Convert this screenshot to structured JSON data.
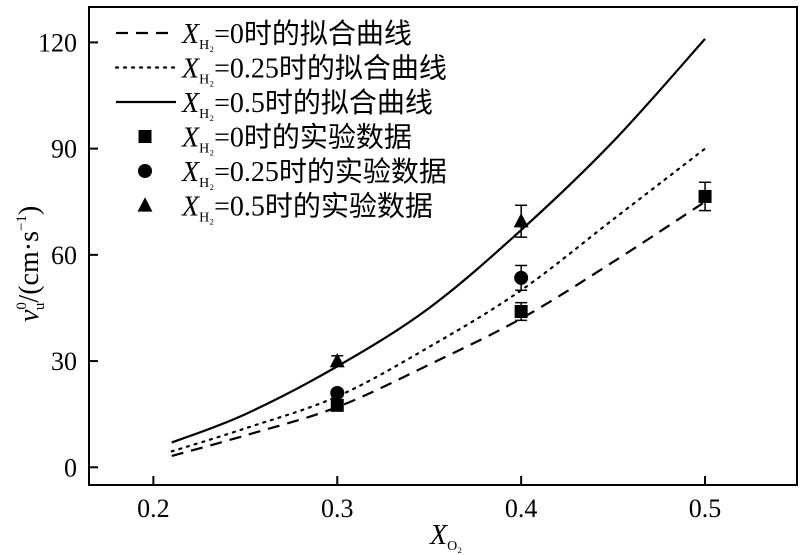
{
  "chart_data": {
    "type": "scatter",
    "title": "",
    "xlabel": "X",
    "xlabel_sub": "O₂",
    "ylabel_parts": {
      "v": "v",
      "sup": "0",
      "sub": "u",
      "unit": "/(cm·s",
      "unit_exp": "−1",
      "close": ")"
    },
    "xlim": [
      0.165,
      0.55
    ],
    "ylim": [
      -5,
      130
    ],
    "xticks": [
      0.2,
      0.3,
      0.4,
      0.5
    ],
    "xtick_labels": [
      "0.2",
      "0.3",
      "0.4",
      "0.5"
    ],
    "yticks": [
      0,
      30,
      60,
      90,
      120
    ],
    "ytick_labels": [
      "0",
      "30",
      "60",
      "90",
      "120"
    ],
    "grid": false,
    "legend_position": "top-left",
    "fit_lines": [
      {
        "name_prefix": "X",
        "name_sub": "H₂",
        "name_suffix": "=0时的拟合曲线",
        "style": "dashed",
        "x": [
          0.21,
          0.25,
          0.3,
          0.35,
          0.4,
          0.45,
          0.5
        ],
        "y": [
          3.2,
          9,
          17,
          29,
          42,
          58,
          75
        ]
      },
      {
        "name_prefix": "X",
        "name_sub": "H₂",
        "name_suffix": "=0.25时的拟合曲线",
        "style": "dotted",
        "x": [
          0.21,
          0.25,
          0.3,
          0.35,
          0.4,
          0.45,
          0.5
        ],
        "y": [
          4.5,
          11,
          20,
          34,
          50,
          70,
          90
        ]
      },
      {
        "name_prefix": "X",
        "name_sub": "H₂",
        "name_suffix": "=0.5时的拟合曲线",
        "style": "solid",
        "x": [
          0.21,
          0.25,
          0.3,
          0.35,
          0.4,
          0.45,
          0.5
        ],
        "y": [
          7,
          15,
          28.5,
          45,
          67,
          92,
          121
        ]
      }
    ],
    "series": [
      {
        "name_prefix": "X",
        "name_sub": "H₂",
        "name_suffix": "=0时的实验数据",
        "marker": "square",
        "x": [
          0.3,
          0.4,
          0.5
        ],
        "y": [
          17.5,
          44,
          76.5
        ],
        "err": [
          1.0,
          2.5,
          4.0
        ]
      },
      {
        "name_prefix": "X",
        "name_sub": "H₂",
        "name_suffix": "=0.25时的实验数据",
        "marker": "circle",
        "x": [
          0.3,
          0.4
        ],
        "y": [
          21,
          53.5
        ],
        "err": [
          1.0,
          3.5
        ]
      },
      {
        "name_prefix": "X",
        "name_sub": "H₂",
        "name_suffix": "=0.5时的实验数据",
        "marker": "triangle",
        "x": [
          0.3,
          0.4
        ],
        "y": [
          30,
          69.5
        ],
        "err": [
          1.5,
          4.5
        ]
      }
    ]
  }
}
